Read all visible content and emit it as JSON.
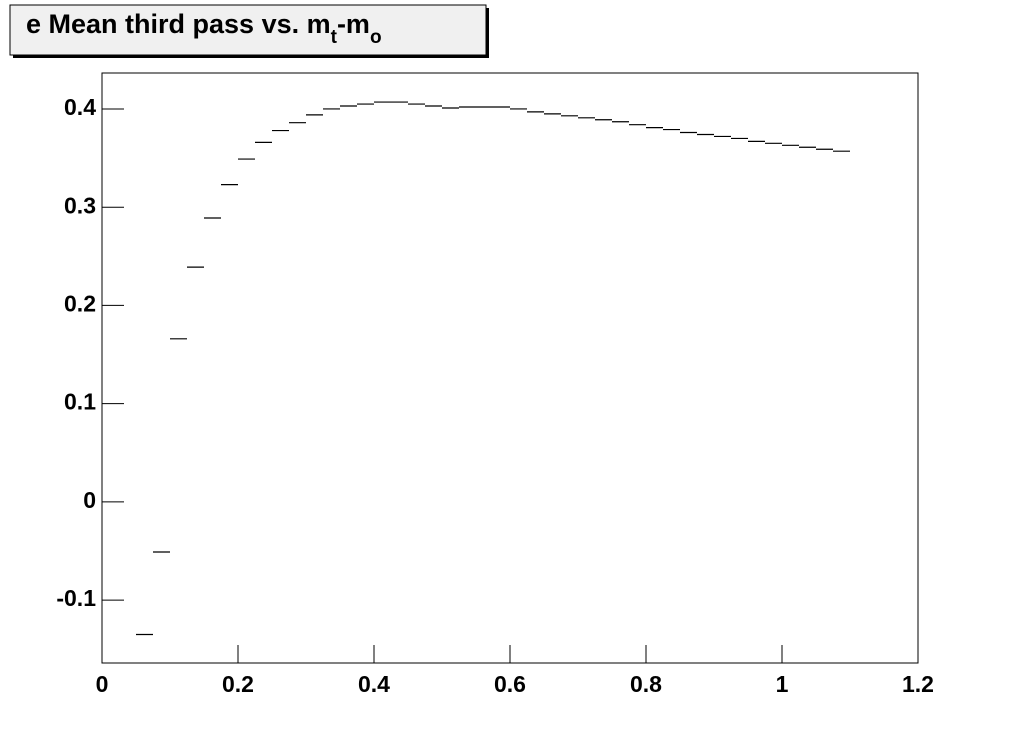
{
  "chart_data": {
    "type": "histogram",
    "title_parts": [
      "e Mean third pass vs. m",
      "t",
      "-m",
      "o"
    ],
    "bins": [
      0.05,
      0.075,
      0.1,
      0.125,
      0.15,
      0.175,
      0.2,
      0.225,
      0.25,
      0.275,
      0.3,
      0.325,
      0.35,
      0.375,
      0.4,
      0.425,
      0.45,
      0.475,
      0.5,
      0.525,
      0.55,
      0.575,
      0.6,
      0.625,
      0.65,
      0.675,
      0.7,
      0.725,
      0.75,
      0.775,
      0.8,
      0.825,
      0.85,
      0.875,
      0.9,
      0.925,
      0.95,
      0.975,
      1.0,
      1.025,
      1.05,
      1.075,
      1.1
    ],
    "values": [
      -0.135,
      -0.051,
      0.166,
      0.239,
      0.289,
      0.323,
      0.349,
      0.366,
      0.378,
      0.386,
      0.394,
      0.4,
      0.403,
      0.405,
      0.407,
      0.407,
      0.405,
      0.403,
      0.401,
      0.402,
      0.402,
      0.402,
      0.4,
      0.397,
      0.395,
      0.393,
      0.391,
      0.389,
      0.387,
      0.384,
      0.381,
      0.379,
      0.376,
      0.374,
      0.372,
      0.37,
      0.367,
      0.365,
      0.363,
      0.361,
      0.359,
      0.357
    ],
    "color": "#000000",
    "xlim": [
      0,
      1.2
    ],
    "ylim": [
      -0.164,
      0.4366
    ],
    "xticks": [
      0,
      0.2,
      0.4,
      0.6,
      0.8,
      1,
      1.2
    ],
    "yticks": [
      -0.1,
      0,
      0.1,
      0.2,
      0.3,
      0.4
    ]
  }
}
